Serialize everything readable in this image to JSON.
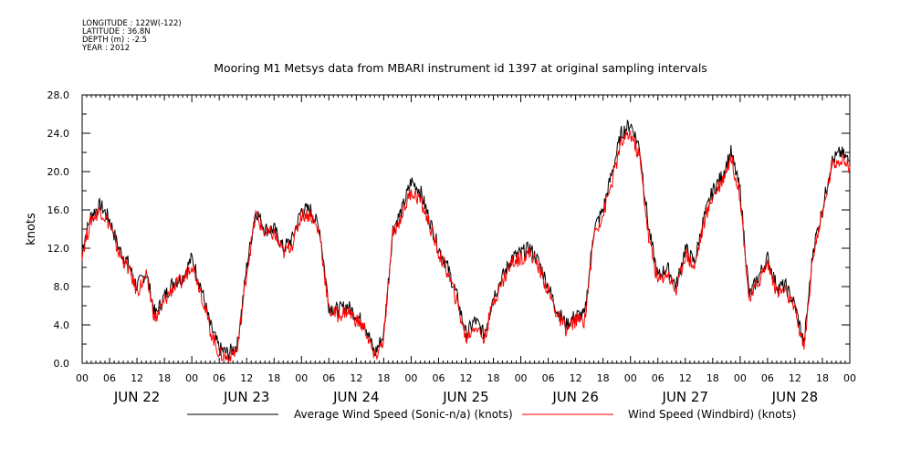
{
  "meta": {
    "longitude": "LONGITUDE : 122W(-122)",
    "latitude": "LATITUDE : 36.8N",
    "depth": "DEPTH (m) : -2.5",
    "year": "YEAR : 2012"
  },
  "colors": {
    "series1": "#000000",
    "series2": "#ff0000"
  },
  "chart_data": {
    "type": "line",
    "title": "Mooring M1 Metsys data from MBARI instrument id 1397 at original sampling intervals",
    "xlabel": "",
    "ylabel": "knots",
    "ylim": [
      0,
      28
    ],
    "xlim_hours": [
      0,
      168
    ],
    "y_ticks": [
      "0.0",
      "4.0",
      "8.0",
      "12.0",
      "16.0",
      "20.0",
      "24.0",
      "28.0"
    ],
    "x_hour_ticks": [
      "00",
      "06",
      "12",
      "18",
      "00",
      "06",
      "12",
      "18",
      "00",
      "06",
      "12",
      "18",
      "00",
      "06",
      "12",
      "18",
      "00",
      "06",
      "12",
      "18",
      "00",
      "06",
      "12",
      "18",
      "00",
      "06",
      "12",
      "18",
      "00"
    ],
    "x_day_labels": [
      "JUN 22",
      "JUN 23",
      "JUN 24",
      "JUN 25",
      "JUN 26",
      "JUN 27",
      "JUN 28"
    ],
    "grid": false,
    "legend_position": "bottom",
    "series": [
      {
        "name": "Average Wind Speed (Sonic-n/a) (knots)",
        "points": [
          [
            0,
            12
          ],
          [
            2,
            15.5
          ],
          [
            4,
            16.5
          ],
          [
            6,
            15
          ],
          [
            8,
            12
          ],
          [
            10,
            10.5
          ],
          [
            12,
            8
          ],
          [
            14,
            9.5
          ],
          [
            16,
            5
          ],
          [
            18,
            7
          ],
          [
            20,
            8.5
          ],
          [
            22,
            9
          ],
          [
            24,
            11
          ],
          [
            26,
            8
          ],
          [
            28,
            4
          ],
          [
            30,
            1.5
          ],
          [
            32,
            1
          ],
          [
            34,
            2
          ],
          [
            36,
            10
          ],
          [
            38,
            16
          ],
          [
            40,
            14
          ],
          [
            42,
            14
          ],
          [
            44,
            12
          ],
          [
            46,
            13
          ],
          [
            48,
            16
          ],
          [
            50,
            16
          ],
          [
            52,
            14
          ],
          [
            54,
            6
          ],
          [
            56,
            5.5
          ],
          [
            58,
            6
          ],
          [
            60,
            5
          ],
          [
            62,
            4
          ],
          [
            64,
            1
          ],
          [
            66,
            3
          ],
          [
            68,
            14
          ],
          [
            70,
            16
          ],
          [
            72,
            19
          ],
          [
            74,
            18
          ],
          [
            76,
            15
          ],
          [
            78,
            12
          ],
          [
            80,
            10
          ],
          [
            82,
            7
          ],
          [
            84,
            3
          ],
          [
            86,
            4.5
          ],
          [
            88,
            3
          ],
          [
            90,
            7
          ],
          [
            92,
            9
          ],
          [
            94,
            11
          ],
          [
            96,
            11.5
          ],
          [
            98,
            12
          ],
          [
            100,
            10.5
          ],
          [
            102,
            8
          ],
          [
            104,
            5.5
          ],
          [
            106,
            4
          ],
          [
            108,
            5
          ],
          [
            110,
            5
          ],
          [
            112,
            14
          ],
          [
            114,
            16
          ],
          [
            116,
            20
          ],
          [
            118,
            24
          ],
          [
            120,
            25
          ],
          [
            122,
            22.5
          ],
          [
            124,
            14
          ],
          [
            126,
            9
          ],
          [
            128,
            10
          ],
          [
            130,
            8
          ],
          [
            132,
            12
          ],
          [
            134,
            10.5
          ],
          [
            136,
            15
          ],
          [
            138,
            18
          ],
          [
            140,
            19.5
          ],
          [
            142,
            22
          ],
          [
            144,
            18
          ],
          [
            146,
            7
          ],
          [
            148,
            9
          ],
          [
            150,
            11
          ],
          [
            152,
            8
          ],
          [
            154,
            8
          ],
          [
            156,
            6
          ],
          [
            158,
            2
          ],
          [
            160,
            12
          ],
          [
            162,
            16
          ],
          [
            164,
            21
          ],
          [
            166,
            22
          ],
          [
            168,
            21
          ]
        ]
      },
      {
        "name": "Wind Speed (Windbird) (knots)",
        "points": [
          [
            0,
            11.5
          ],
          [
            2,
            15
          ],
          [
            4,
            16
          ],
          [
            6,
            14.5
          ],
          [
            8,
            11.5
          ],
          [
            10,
            10
          ],
          [
            12,
            7.5
          ],
          [
            14,
            9
          ],
          [
            16,
            4.5
          ],
          [
            18,
            6.5
          ],
          [
            20,
            8
          ],
          [
            22,
            8.5
          ],
          [
            24,
            10.5
          ],
          [
            26,
            7.5
          ],
          [
            28,
            3.5
          ],
          [
            30,
            1
          ],
          [
            32,
            0.5
          ],
          [
            34,
            1.5
          ],
          [
            36,
            9.5
          ],
          [
            38,
            15.5
          ],
          [
            40,
            13.5
          ],
          [
            42,
            13.5
          ],
          [
            44,
            11.5
          ],
          [
            46,
            12.5
          ],
          [
            48,
            15.5
          ],
          [
            50,
            15.5
          ],
          [
            52,
            13.5
          ],
          [
            54,
            5.5
          ],
          [
            56,
            5
          ],
          [
            58,
            5.5
          ],
          [
            60,
            4.5
          ],
          [
            62,
            3.5
          ],
          [
            64,
            0.5
          ],
          [
            66,
            2.5
          ],
          [
            68,
            13.5
          ],
          [
            70,
            15.5
          ],
          [
            72,
            18
          ],
          [
            74,
            17
          ],
          [
            76,
            14.5
          ],
          [
            78,
            11.5
          ],
          [
            80,
            9.5
          ],
          [
            82,
            6.5
          ],
          [
            84,
            2.5
          ],
          [
            86,
            4
          ],
          [
            88,
            2.5
          ],
          [
            90,
            6.5
          ],
          [
            92,
            8.5
          ],
          [
            94,
            10.5
          ],
          [
            96,
            11
          ],
          [
            98,
            11.5
          ],
          [
            100,
            10
          ],
          [
            102,
            7.5
          ],
          [
            104,
            5
          ],
          [
            106,
            3.5
          ],
          [
            108,
            4.5
          ],
          [
            110,
            4.5
          ],
          [
            112,
            13.5
          ],
          [
            114,
            15.5
          ],
          [
            116,
            19
          ],
          [
            118,
            23
          ],
          [
            120,
            24
          ],
          [
            122,
            21.5
          ],
          [
            124,
            13
          ],
          [
            126,
            8.5
          ],
          [
            128,
            9.5
          ],
          [
            130,
            7.5
          ],
          [
            132,
            11.5
          ],
          [
            134,
            10
          ],
          [
            136,
            14.5
          ],
          [
            138,
            17.5
          ],
          [
            140,
            19
          ],
          [
            142,
            21.5
          ],
          [
            144,
            17.5
          ],
          [
            146,
            6.5
          ],
          [
            148,
            8.5
          ],
          [
            150,
            10.5
          ],
          [
            152,
            7.5
          ],
          [
            154,
            7.5
          ],
          [
            156,
            5.5
          ],
          [
            158,
            1.5
          ],
          [
            160,
            11.5
          ],
          [
            162,
            15.5
          ],
          [
            164,
            20.5
          ],
          [
            166,
            21.5
          ],
          [
            168,
            20.5
          ]
        ]
      }
    ]
  }
}
